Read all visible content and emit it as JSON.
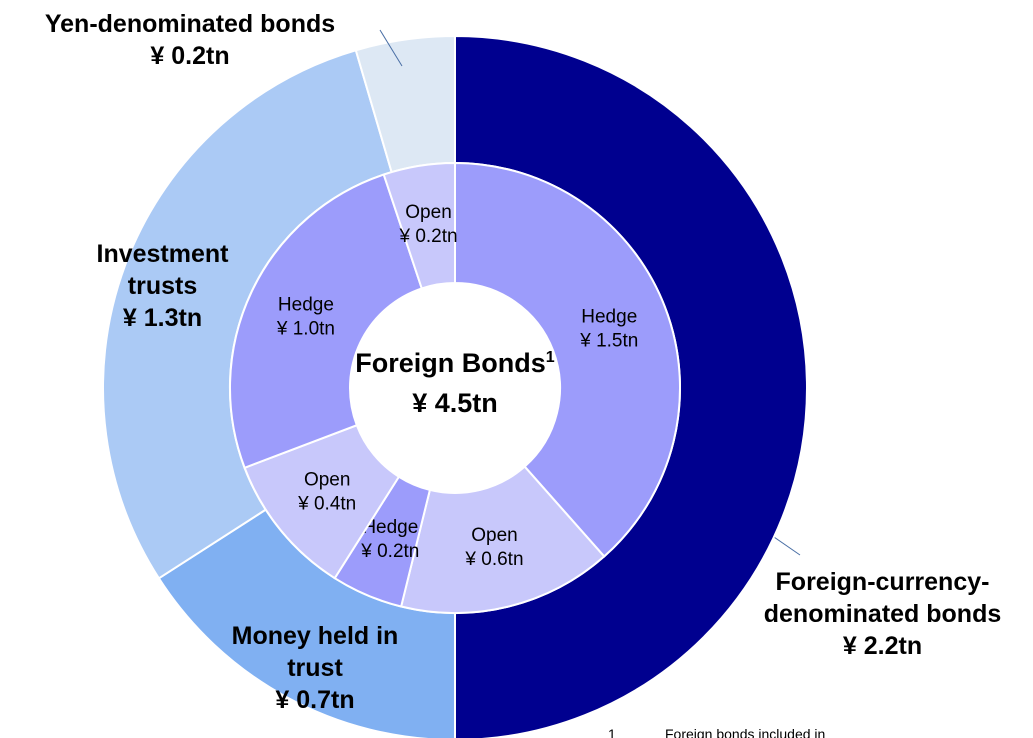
{
  "chart_data": {
    "type": "nested-donut",
    "center_label": "Foreign Bonds",
    "center_superscript": "1",
    "center_value_label": "¥ 4.5tn",
    "center_value": 4.5,
    "outer": {
      "categories": [
        "Foreign-currency-denominated bonds",
        "Money held in trust",
        "Investment trusts",
        "Yen-denominated bonds"
      ],
      "values": [
        2.2,
        0.7,
        1.3,
        0.2
      ],
      "value_labels": [
        "¥ 2.2tn",
        "¥ 0.7tn",
        "¥ 1.3tn",
        "¥ 0.2tn"
      ],
      "colors": [
        "#00008f",
        "#80b0f2",
        "#abcaf5",
        "#dde8f4"
      ]
    },
    "inner": {
      "categories": [
        "Hedge",
        "Open",
        "Hedge",
        "Open",
        "Hedge",
        "Open"
      ],
      "values": [
        1.5,
        0.6,
        0.2,
        0.4,
        1.0,
        0.2
      ],
      "value_labels": [
        "¥ 1.5tn",
        "¥ 0.6tn",
        "¥ 0.2tn",
        "¥ 0.4tn",
        "¥ 1.0tn",
        "¥ 0.2tn"
      ],
      "colors": [
        "#9c9cfb",
        "#c8c8fb",
        "#9c9cfb",
        "#c8c8fb",
        "#9c9cfb",
        "#c8c8fb"
      ]
    },
    "footnote_marker": "1",
    "footnote": "Foreign bonds included in"
  }
}
